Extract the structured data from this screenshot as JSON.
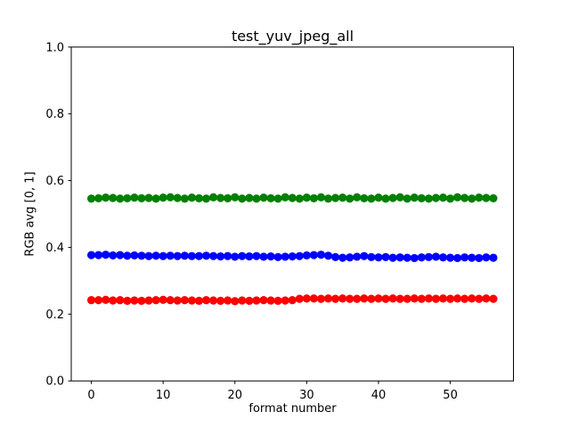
{
  "figure": {
    "background": "#ffffff",
    "frame_color": "#000000",
    "text_color": "#000000"
  },
  "chart_data": {
    "type": "scatter",
    "title": "test_yuv_jpeg_all",
    "xlabel": "format number",
    "ylabel": "RGB avg [0, 1]",
    "xlim": [
      -2.8,
      58.8
    ],
    "ylim": [
      0.0,
      1.0
    ],
    "xticks": [
      0,
      10,
      20,
      30,
      40,
      50
    ],
    "xtick_labels": [
      "0",
      "10",
      "20",
      "30",
      "40",
      "50"
    ],
    "yticks": [
      0.0,
      0.2,
      0.4,
      0.6,
      0.8,
      1.0
    ],
    "ytick_labels": [
      "0.0",
      "0.2",
      "0.4",
      "0.6",
      "0.8",
      "1.0"
    ],
    "grid": false,
    "legend": "none",
    "marker": "o",
    "x": [
      0,
      1,
      2,
      3,
      4,
      5,
      6,
      7,
      8,
      9,
      10,
      11,
      12,
      13,
      14,
      15,
      16,
      17,
      18,
      19,
      20,
      21,
      22,
      23,
      24,
      25,
      26,
      27,
      28,
      29,
      30,
      31,
      32,
      33,
      34,
      35,
      36,
      37,
      38,
      39,
      40,
      41,
      42,
      43,
      44,
      45,
      46,
      47,
      48,
      49,
      50,
      51,
      52,
      53,
      54,
      55,
      56
    ],
    "series": [
      {
        "name": "green",
        "color": "#008000",
        "values": [
          0.546,
          0.547,
          0.549,
          0.548,
          0.546,
          0.547,
          0.549,
          0.547,
          0.548,
          0.546,
          0.549,
          0.55,
          0.548,
          0.546,
          0.549,
          0.547,
          0.546,
          0.55,
          0.548,
          0.547,
          0.55,
          0.546,
          0.548,
          0.546,
          0.549,
          0.547,
          0.546,
          0.55,
          0.548,
          0.546,
          0.549,
          0.547,
          0.55,
          0.546,
          0.548,
          0.549,
          0.546,
          0.55,
          0.547,
          0.546,
          0.549,
          0.546,
          0.548,
          0.55,
          0.546,
          0.549,
          0.547,
          0.546,
          0.548,
          0.549,
          0.546,
          0.55,
          0.548,
          0.546,
          0.549,
          0.548,
          0.547
        ]
      },
      {
        "name": "blue",
        "color": "#0000ff",
        "values": [
          0.377,
          0.377,
          0.378,
          0.376,
          0.377,
          0.375,
          0.376,
          0.375,
          0.374,
          0.375,
          0.374,
          0.375,
          0.374,
          0.375,
          0.374,
          0.374,
          0.375,
          0.374,
          0.373,
          0.374,
          0.372,
          0.374,
          0.373,
          0.374,
          0.372,
          0.373,
          0.371,
          0.372,
          0.373,
          0.374,
          0.376,
          0.377,
          0.378,
          0.375,
          0.371,
          0.369,
          0.37,
          0.372,
          0.374,
          0.371,
          0.37,
          0.371,
          0.369,
          0.37,
          0.369,
          0.368,
          0.37,
          0.371,
          0.372,
          0.37,
          0.369,
          0.368,
          0.37,
          0.369,
          0.368,
          0.37,
          0.369
        ]
      },
      {
        "name": "red",
        "color": "#ff0000",
        "values": [
          0.242,
          0.242,
          0.243,
          0.241,
          0.242,
          0.24,
          0.241,
          0.24,
          0.241,
          0.242,
          0.243,
          0.242,
          0.241,
          0.242,
          0.241,
          0.24,
          0.242,
          0.241,
          0.24,
          0.241,
          0.239,
          0.241,
          0.24,
          0.241,
          0.242,
          0.241,
          0.24,
          0.241,
          0.242,
          0.246,
          0.247,
          0.247,
          0.246,
          0.247,
          0.246,
          0.247,
          0.246,
          0.246,
          0.247,
          0.246,
          0.247,
          0.246,
          0.247,
          0.246,
          0.246,
          0.247,
          0.246,
          0.247,
          0.246,
          0.247,
          0.246,
          0.247,
          0.246,
          0.247,
          0.246,
          0.247,
          0.246
        ]
      }
    ]
  }
}
